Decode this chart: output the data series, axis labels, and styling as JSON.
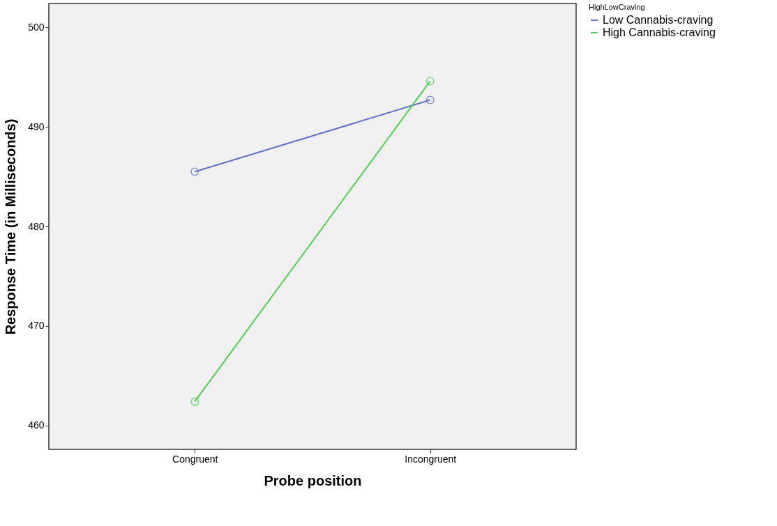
{
  "chart_data": {
    "type": "line",
    "xlabel": "Probe position",
    "ylabel": "Response Time (in Milliseconds)",
    "legend_title": "HighLowCraving",
    "categories": [
      "Congruent",
      "Incongruent"
    ],
    "series": [
      {
        "name": "Low Cannabis-craving",
        "color": "#6272c8",
        "values": [
          485.5,
          492.7
        ]
      },
      {
        "name": "High Cannabis-craving",
        "color": "#4fcf4f",
        "values": [
          462.4,
          494.6
        ]
      }
    ],
    "ylim": [
      457.6,
      502.4
    ],
    "yticks": [
      460,
      470,
      480,
      490,
      500
    ],
    "grid": false,
    "legend": "top right",
    "marker": "circle",
    "line_style": "solid"
  }
}
